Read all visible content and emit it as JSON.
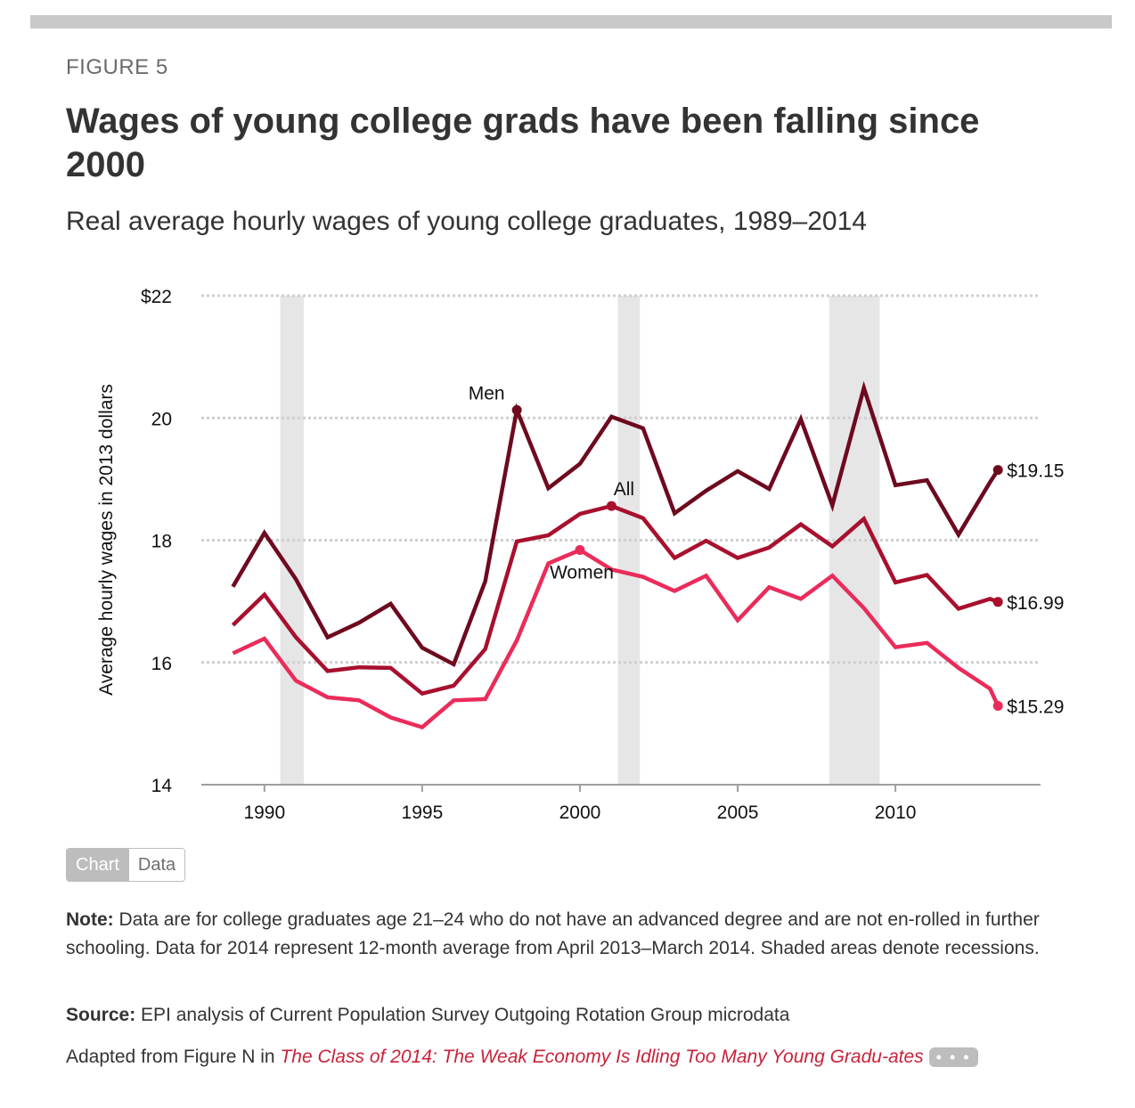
{
  "figure_label": "FIGURE 5",
  "title": "Wages of young college grads have been falling since 2000",
  "subtitle": "Real average hourly wages of young college graduates, 1989–2014",
  "toggle": {
    "chart_label": "Chart",
    "data_label": "Data"
  },
  "note": {
    "label": "Note:",
    "text": "Data are for college graduates age 21–24 who do not have an advanced degree and are not en-rolled in further schooling. Data for 2014 represent 12-month average from April 2013–March 2014. Shaded areas denote recessions."
  },
  "source": {
    "label": "Source:",
    "text": "EPI analysis of Current Population Survey Outgoing Rotation Group microdata"
  },
  "adapted": {
    "prefix": "Adapted from Figure N in ",
    "link_text": "The Class of 2014: The Weak Economy Is Idling Too Many Young Gradu-ates",
    "more_label": "• • •"
  },
  "chart_data": {
    "type": "line",
    "title": "Wages of young college grads have been falling since 2000",
    "ylabel": "Average hourly wages in 2013 dollars",
    "xlabel": "",
    "xlim": [
      1988,
      2014.6
    ],
    "ylim": [
      14,
      22
    ],
    "x_ticks": [
      1990,
      1995,
      2000,
      2005,
      2010
    ],
    "y_ticks": [
      14,
      16,
      18,
      20,
      22
    ],
    "y_tick_labels": [
      "14",
      "16",
      "18",
      "20",
      "$22"
    ],
    "grid": true,
    "recessions": [
      [
        1990.5,
        1991.25
      ],
      [
        2001.2,
        2001.9
      ],
      [
        2007.9,
        2009.5
      ]
    ],
    "x": [
      1989,
      1990,
      1991,
      1992,
      1993,
      1994,
      1995,
      1996,
      1997,
      1998,
      1999,
      2000,
      2001,
      2002,
      2003,
      2004,
      2005,
      2006,
      2007,
      2008,
      2009,
      2010,
      2011,
      2012,
      2013,
      2013.25
    ],
    "series": [
      {
        "name": "Men",
        "color": "#6e0a1e",
        "values": [
          17.24,
          18.12,
          17.36,
          16.41,
          16.65,
          16.96,
          16.24,
          15.97,
          17.33,
          20.13,
          18.85,
          19.25,
          20.02,
          19.83,
          18.44,
          18.81,
          19.13,
          18.84,
          19.98,
          18.57,
          20.49,
          18.9,
          18.98,
          18.09,
          18.95,
          19.15
        ],
        "end_label": "$19.15",
        "label": "Men",
        "label_index": 9
      },
      {
        "name": "All",
        "color": "#a8102e",
        "values": [
          16.61,
          17.11,
          16.41,
          15.86,
          15.92,
          15.91,
          15.49,
          15.62,
          16.22,
          17.98,
          18.08,
          18.43,
          18.56,
          18.36,
          17.71,
          17.99,
          17.71,
          17.88,
          18.26,
          17.9,
          18.35,
          17.31,
          17.43,
          16.88,
          17.04,
          16.99
        ],
        "end_label": "$16.99",
        "label": "All",
        "label_index": 12
      },
      {
        "name": "Women",
        "color": "#ea2c5a",
        "values": [
          16.15,
          16.39,
          15.7,
          15.43,
          15.38,
          15.1,
          14.94,
          15.38,
          15.4,
          16.36,
          17.62,
          17.84,
          17.52,
          17.4,
          17.17,
          17.42,
          16.69,
          17.23,
          17.04,
          17.42,
          16.89,
          16.25,
          16.32,
          15.91,
          15.57,
          15.29
        ],
        "end_label": "$15.29",
        "label": "Women",
        "label_index": 11
      }
    ]
  }
}
